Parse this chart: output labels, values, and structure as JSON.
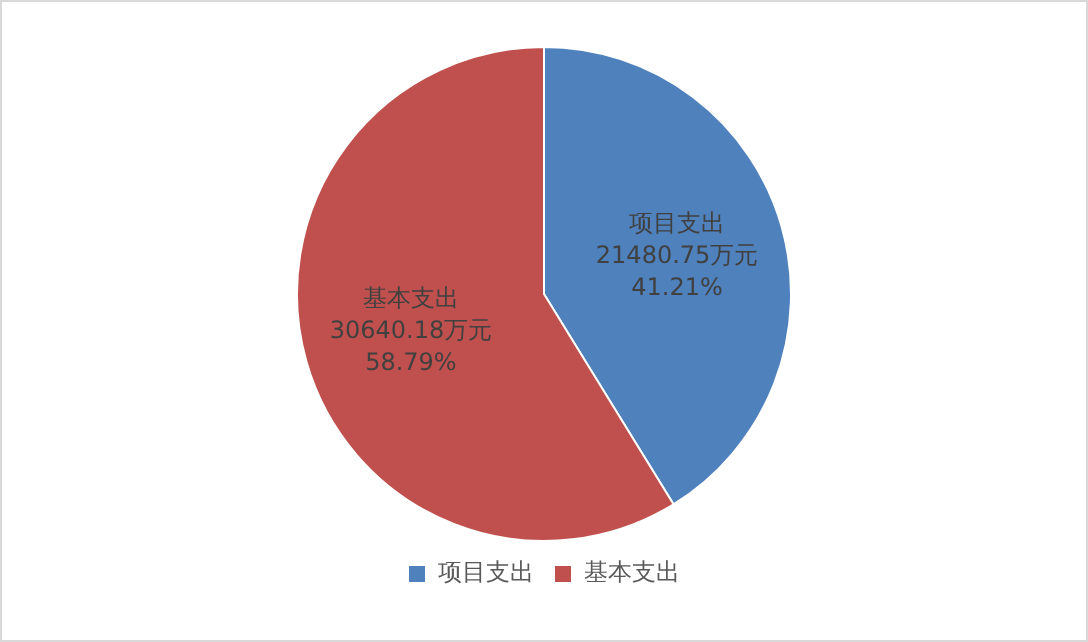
{
  "chart_data": {
    "type": "pie",
    "categories": [
      "项目支出",
      "基本支出"
    ],
    "values": [
      21480.75,
      30640.18
    ],
    "colors": [
      "#4f81bd",
      "#c0504d"
    ],
    "value_labels": [
      "项目支出\n21480.75万元\n41.21%",
      "基本支出\n30640.18万元\n58.79%"
    ],
    "legend": "bottom"
  }
}
